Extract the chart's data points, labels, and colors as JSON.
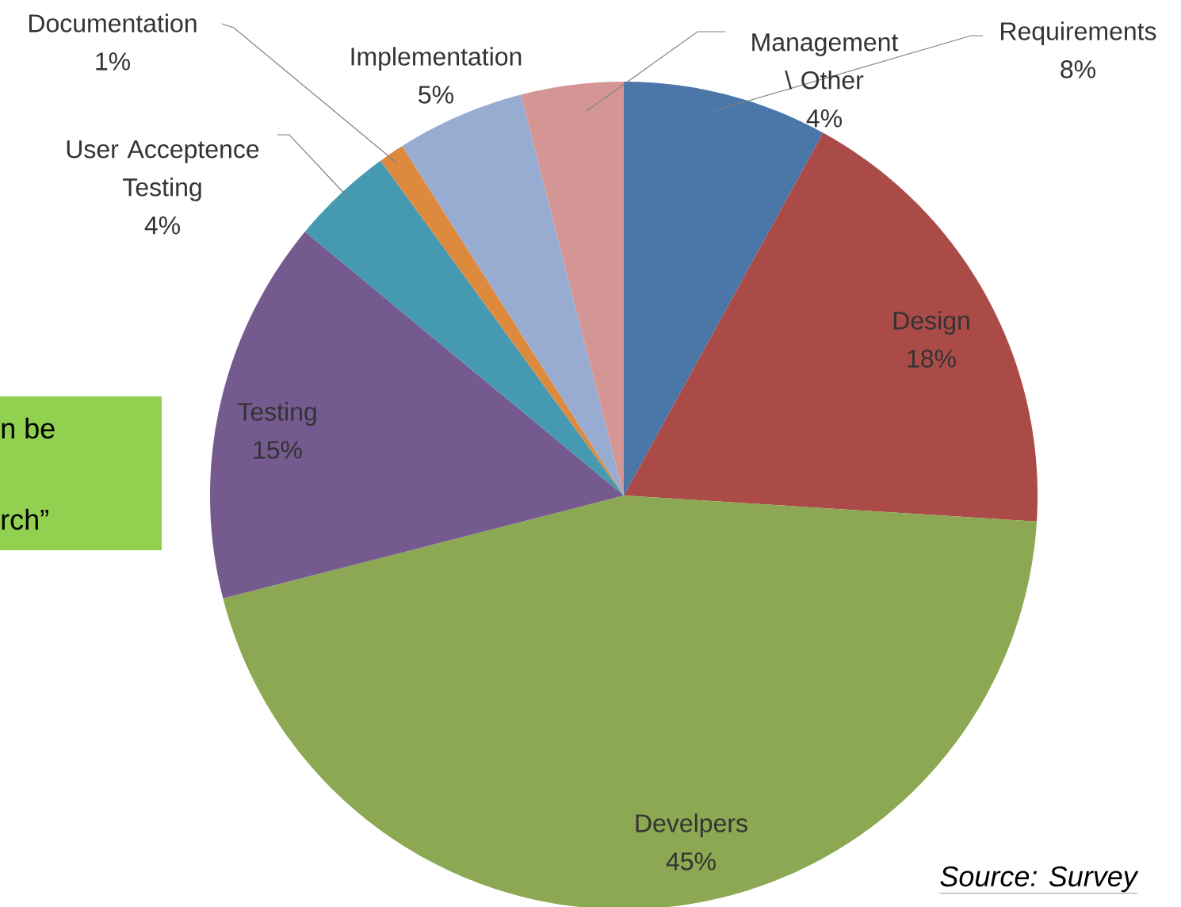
{
  "chart_data": {
    "type": "pie",
    "categories": [
      "Requirements",
      "Design",
      "Develpers",
      "Testing",
      "User Acceptence Testing",
      "Documentation",
      "Implementation",
      "Management \\ Other"
    ],
    "values": [
      8,
      18,
      45,
      15,
      4,
      1,
      5,
      4
    ],
    "value_labels": [
      "8%",
      "18%",
      "45%",
      "15%",
      "4%",
      "1%",
      "5%",
      "4%"
    ],
    "colors": [
      "#4a76a8",
      "#ab4b48",
      "#8ca852",
      "#755a90",
      "#4599b0",
      "#dd8a3e",
      "#98acd2",
      "#d49694"
    ],
    "annotations": [
      "n be",
      "rch”",
      "Source: Survey"
    ]
  }
}
